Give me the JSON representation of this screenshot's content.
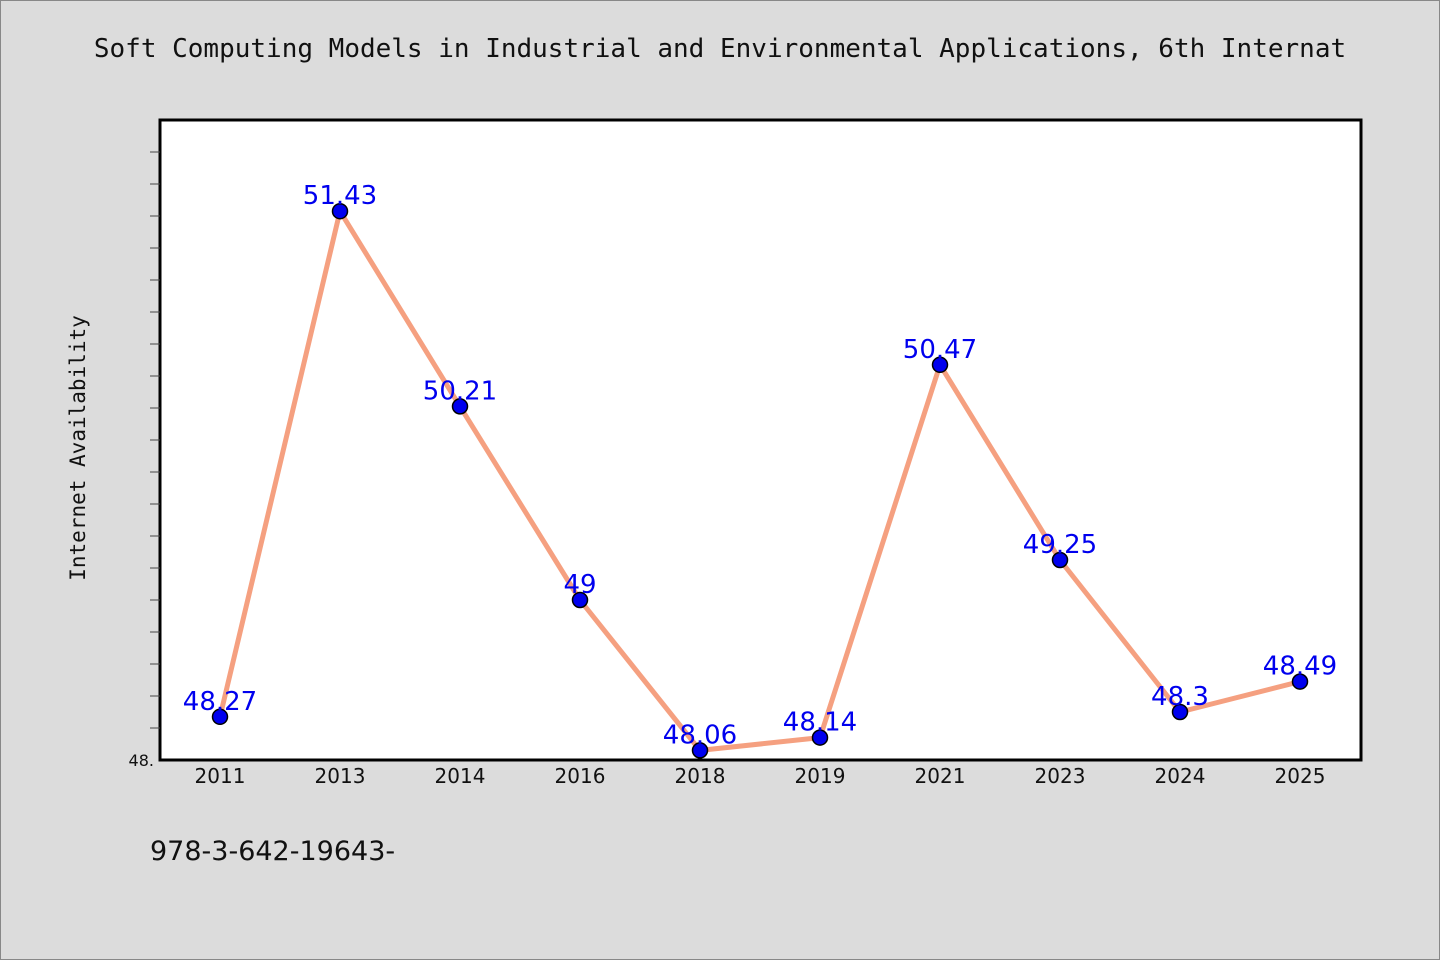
{
  "chart_data": {
    "type": "line",
    "title": "Soft Computing Models in Industrial and Environmental Applications, 6th Internat",
    "xlabel": "",
    "ylabel": "Internet Availability",
    "categories": [
      "2011",
      "2013",
      "2014",
      "2016",
      "2018",
      "2019",
      "2021",
      "2023",
      "2024",
      "2025"
    ],
    "values": [
      48.27,
      51.43,
      50.21,
      49,
      48.06,
      48.14,
      50.47,
      49.25,
      48.3,
      48.49
    ],
    "data_labels": [
      "48.27",
      "51.43",
      "50.21",
      "49",
      "48.06",
      "48.14",
      "50.47",
      "49.25",
      "48.3",
      "48.49"
    ],
    "ylim": [
      48,
      52
    ],
    "y_tick_label": "48.",
    "grid": false,
    "colors": {
      "line": "#f5a080",
      "marker": "#0000ee",
      "label": "#0000ee",
      "plot_bg": "#ffffff"
    }
  },
  "footnote": "978-3-642-19643-"
}
